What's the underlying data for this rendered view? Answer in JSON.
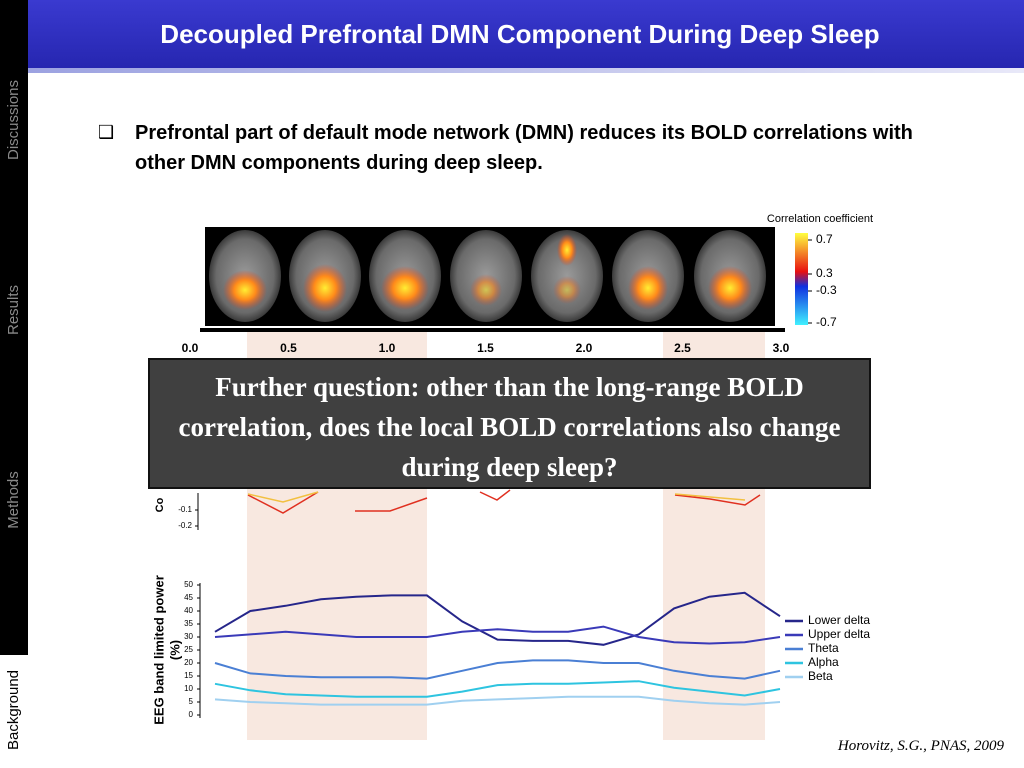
{
  "header": {
    "title": "Decoupled Prefrontal DMN Component During Deep Sleep"
  },
  "sidebar": {
    "items": [
      "Discussions",
      "Results",
      "Methods",
      "Background"
    ],
    "active_index": 3
  },
  "bullet": {
    "text": "Prefrontal part of default mode network (DMN) reduces its BOLD correlations with other DMN components during deep sleep."
  },
  "figure": {
    "colorbar": {
      "title": "Correlation coefficient",
      "ticks": [
        0.7,
        0.3,
        -0.3,
        -0.7
      ]
    },
    "time_axis": {
      "ticks": [
        {
          "value": 0,
          "label": "0.0"
        },
        0.5,
        {
          "value": 1,
          "label": "1.0"
        },
        1.5,
        {
          "value": 2,
          "label": "2.0"
        },
        2.5,
        {
          "value": 3,
          "label": "3.0"
        }
      ]
    },
    "correlation_plot": {
      "ylabel": "Co",
      "yticks": [
        -0.1,
        -0.2
      ]
    },
    "eeg_plot": {
      "ylabel_lines": [
        "EEG band limited power",
        "(%)"
      ],
      "ylim": [
        0,
        50
      ],
      "yticks": [
        0,
        5,
        10,
        15,
        20,
        25,
        30,
        35,
        40,
        45,
        50
      ],
      "series": [
        {
          "name": "Lower delta",
          "color": "#26268a",
          "values": [
            32,
            40,
            42,
            44.5,
            45.5,
            46,
            46,
            36,
            29,
            28.5,
            28.5,
            27,
            31,
            41,
            45.5,
            47,
            38
          ]
        },
        {
          "name": "Upper delta",
          "color": "#3a3ab8",
          "values": [
            30,
            31,
            32,
            31,
            30,
            30,
            30,
            32,
            33,
            32,
            32,
            34,
            30,
            28,
            27.5,
            28,
            30
          ]
        },
        {
          "name": "Theta",
          "color": "#4a7fd4",
          "values": [
            20,
            16,
            15,
            14.5,
            14.5,
            14.5,
            14,
            17,
            20,
            21,
            21,
            20,
            20,
            17,
            15,
            14,
            17
          ]
        },
        {
          "name": "Alpha",
          "color": "#2ec4e0",
          "values": [
            12,
            9.5,
            8,
            7.5,
            7,
            7,
            7,
            9,
            11.5,
            12,
            12,
            12.5,
            13,
            10.5,
            9,
            7.5,
            10
          ]
        },
        {
          "name": "Beta",
          "color": "#a0d0f0",
          "values": [
            6,
            5,
            4.5,
            4,
            4,
            4,
            4,
            5.5,
            6,
            6.5,
            7,
            7,
            7,
            5.5,
            4.5,
            4,
            5
          ]
        }
      ]
    }
  },
  "callout": {
    "text": "Further question: other than the long-range BOLD correlation, does the local BOLD correlations also change during deep sleep?"
  },
  "citation": "Horovitz, S.G., PNAS, 2009"
}
